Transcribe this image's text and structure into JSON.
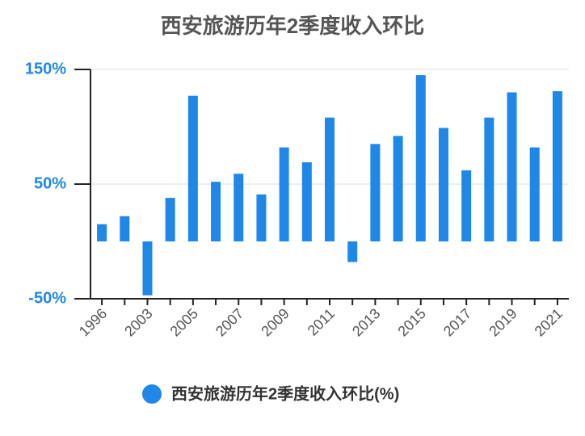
{
  "chart_data": {
    "type": "bar",
    "title": "西安旅游历年2季度收入环比",
    "categories": [
      "1996",
      null,
      "2003",
      null,
      "2005",
      null,
      "2007",
      null,
      "2009",
      null,
      "2011",
      null,
      "2013",
      null,
      "2015",
      null,
      "2017",
      null,
      "2019",
      null,
      "2021"
    ],
    "series": [
      {
        "name": "西安旅游历年2季度收入环比(%)",
        "color": "#1f87e8",
        "values": [
          15,
          22,
          -47,
          38,
          127,
          52,
          59,
          41,
          82,
          69,
          108,
          -18,
          85,
          92,
          145,
          99,
          62,
          108,
          130,
          82,
          131
        ]
      }
    ],
    "ylim": [
      -50,
      150
    ],
    "yticks": [
      {
        "value": -50,
        "label": "-50%"
      },
      {
        "value": 50,
        "label": "50%"
      },
      {
        "value": 150,
        "label": "150%"
      }
    ],
    "grid": true,
    "legend": "bottom"
  }
}
